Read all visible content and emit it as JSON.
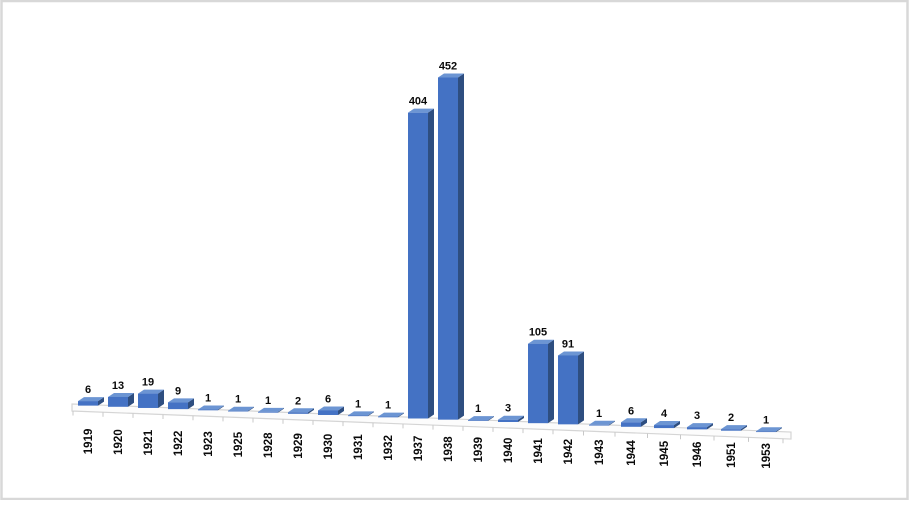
{
  "chart_data": {
    "type": "bar",
    "variant": "3d-column",
    "title": "",
    "xlabel": "",
    "ylabel": "",
    "legend": false,
    "gridlines": false,
    "data_labels": true,
    "categories": [
      "1919",
      "1920",
      "1921",
      "1922",
      "1923",
      "1925",
      "1928",
      "1929",
      "1930",
      "1931",
      "1932",
      "1937",
      "1938",
      "1939",
      "1940",
      "1941",
      "1942",
      "1943",
      "1944",
      "1945",
      "1946",
      "1951",
      "1953"
    ],
    "values": [
      6,
      13,
      19,
      9,
      1,
      1,
      1,
      2,
      6,
      1,
      1,
      404,
      452,
      1,
      3,
      105,
      91,
      1,
      6,
      4,
      3,
      2,
      1
    ],
    "colors": {
      "bar_front": "#4472C4",
      "bar_top": "#6C95D3",
      "bar_side": "#2E4E80",
      "floor_fill": "#FCFCFC",
      "floor_stroke": "#D5D5D5",
      "tick": "#C8C8C8",
      "label_text": "#0A0A0A",
      "background": "#FFFFFF",
      "frame_border": "#D8D8D8"
    }
  }
}
